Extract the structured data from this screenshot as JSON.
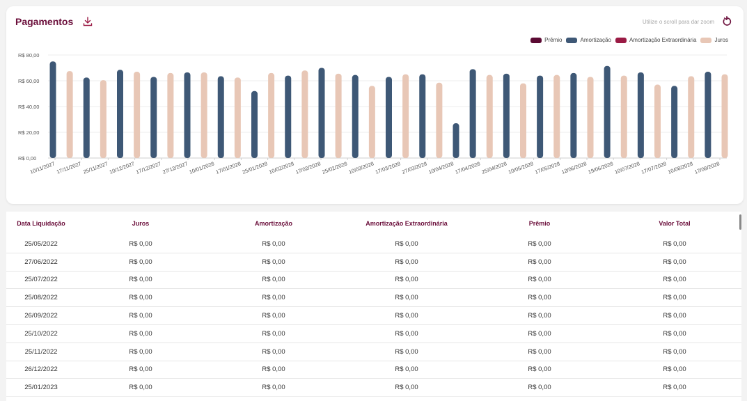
{
  "header": {
    "title": "Pagamentos",
    "download_icon": "download-icon",
    "zoom_hint": "Utilize o scroll para dar zoom",
    "reset_icon": "reset-zoom-icon"
  },
  "legend": [
    {
      "label": "Prêmio",
      "color": "#5b0a33"
    },
    {
      "label": "Amortização",
      "color": "#3e5876"
    },
    {
      "label": "Amortização Extraordinária",
      "color": "#9a1a44"
    },
    {
      "label": "Juros",
      "color": "#e8c7b6"
    }
  ],
  "chart_data": {
    "type": "bar",
    "y_tick_labels": [
      "R$ 0,00",
      "R$ 20,00",
      "R$ 40,00",
      "R$ 60,00",
      "R$ 80,00"
    ],
    "ylim": [
      0,
      80
    ],
    "x_tick_labels": [
      "10/11/2027",
      "17/11/2027",
      "25/11/2027",
      "10/12/2027",
      "17/12/2027",
      "27/12/2027",
      "10/01/2028",
      "17/01/2028",
      "25/01/2028",
      "10/02/2028",
      "17/02/2028",
      "25/02/2028",
      "10/03/2028",
      "17/03/2028",
      "27/03/2028",
      "10/04/2028",
      "17/04/2028",
      "25/04/2028",
      "10/05/2028",
      "17/05/2028",
      "12/06/2028",
      "19/06/2028",
      "10/07/2028",
      "17/07/2028",
      "10/08/2028",
      "17/08/2028"
    ],
    "grid": true,
    "legend_position": "top-right",
    "series": [
      {
        "name": "Amortização",
        "color": "#3e5876"
      },
      {
        "name": "Juros",
        "color": "#e8c7b6"
      }
    ],
    "bars": [
      {
        "series": "Amortização",
        "value": 75
      },
      {
        "series": "Juros",
        "value": 67.5
      },
      {
        "series": "Amortização",
        "value": 62.5
      },
      {
        "series": "Juros",
        "value": 60.5
      },
      {
        "series": "Amortização",
        "value": 68.5
      },
      {
        "series": "Juros",
        "value": 67
      },
      {
        "series": "Amortização",
        "value": 63
      },
      {
        "series": "Juros",
        "value": 66
      },
      {
        "series": "Amortização",
        "value": 66.5
      },
      {
        "series": "Juros",
        "value": 66.5
      },
      {
        "series": "Amortização",
        "value": 63.5
      },
      {
        "series": "Juros",
        "value": 62.5
      },
      {
        "series": "Amortização",
        "value": 52
      },
      {
        "series": "Juros",
        "value": 66
      },
      {
        "series": "Amortização",
        "value": 64
      },
      {
        "series": "Juros",
        "value": 68
      },
      {
        "series": "Amortização",
        "value": 70
      },
      {
        "series": "Juros",
        "value": 65.5
      },
      {
        "series": "Amortização",
        "value": 64.5
      },
      {
        "series": "Juros",
        "value": 56
      },
      {
        "series": "Amortização",
        "value": 63
      },
      {
        "series": "Juros",
        "value": 65
      },
      {
        "series": "Amortização",
        "value": 65
      },
      {
        "series": "Juros",
        "value": 58.5
      },
      {
        "series": "Amortização",
        "value": 27
      },
      {
        "series": "Amortização",
        "value": 69
      },
      {
        "series": "Juros",
        "value": 64.5
      },
      {
        "series": "Amortização",
        "value": 65.5
      },
      {
        "series": "Juros",
        "value": 58
      },
      {
        "series": "Amortização",
        "value": 64
      },
      {
        "series": "Juros",
        "value": 64.5
      },
      {
        "series": "Amortização",
        "value": 66
      },
      {
        "series": "Juros",
        "value": 63
      },
      {
        "series": "Amortização",
        "value": 71.5
      },
      {
        "series": "Juros",
        "value": 64
      },
      {
        "series": "Amortização",
        "value": 66.5
      },
      {
        "series": "Juros",
        "value": 57
      },
      {
        "series": "Amortização",
        "value": 56
      },
      {
        "series": "Juros",
        "value": 63.5
      },
      {
        "series": "Amortização",
        "value": 67
      },
      {
        "series": "Juros",
        "value": 65
      }
    ]
  },
  "table": {
    "headers": [
      "Data Liquidação",
      "Juros",
      "Amortização",
      "Amortização Extraordinária",
      "Prêmio",
      "Valor Total"
    ],
    "rows": [
      [
        "25/05/2022",
        "R$ 0,00",
        "R$ 0,00",
        "R$ 0,00",
        "R$ 0,00",
        "R$ 0,00"
      ],
      [
        "27/06/2022",
        "R$ 0,00",
        "R$ 0,00",
        "R$ 0,00",
        "R$ 0,00",
        "R$ 0,00"
      ],
      [
        "25/07/2022",
        "R$ 0,00",
        "R$ 0,00",
        "R$ 0,00",
        "R$ 0,00",
        "R$ 0,00"
      ],
      [
        "25/08/2022",
        "R$ 0,00",
        "R$ 0,00",
        "R$ 0,00",
        "R$ 0,00",
        "R$ 0,00"
      ],
      [
        "26/09/2022",
        "R$ 0,00",
        "R$ 0,00",
        "R$ 0,00",
        "R$ 0,00",
        "R$ 0,00"
      ],
      [
        "25/10/2022",
        "R$ 0,00",
        "R$ 0,00",
        "R$ 0,00",
        "R$ 0,00",
        "R$ 0,00"
      ],
      [
        "25/11/2022",
        "R$ 0,00",
        "R$ 0,00",
        "R$ 0,00",
        "R$ 0,00",
        "R$ 0,00"
      ],
      [
        "26/12/2022",
        "R$ 0,00",
        "R$ 0,00",
        "R$ 0,00",
        "R$ 0,00",
        "R$ 0,00"
      ],
      [
        "25/01/2023",
        "R$ 0,00",
        "R$ 0,00",
        "R$ 0,00",
        "R$ 0,00",
        "R$ 0,00"
      ]
    ]
  }
}
